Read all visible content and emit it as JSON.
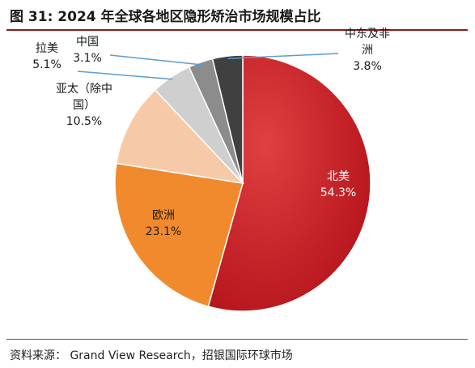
{
  "title": "图 31: 2024 年全球各地区隐形矫治市场规模占比",
  "source": "资料来源： Grand View Research，招银国际环球市场",
  "chart_data": {
    "type": "pie",
    "title": "图 31: 2024 年全球各地区隐形矫治市场规模占比",
    "start_angle_deg": 0,
    "direction": "clockwise",
    "slices": [
      {
        "label": "北美",
        "value": 54.3,
        "display": "54.3%",
        "color": "#c8141c"
      },
      {
        "label": "欧洲",
        "value": 23.1,
        "display": "23.1%",
        "color": "#f08a2c"
      },
      {
        "label": "亚太（除中国）",
        "label_lines": [
          "亚太（除中",
          "国）"
        ],
        "value": 10.5,
        "display": "10.5%",
        "color": "#f6c9a8"
      },
      {
        "label": "拉美",
        "value": 5.1,
        "display": "5.1%",
        "color": "#cfcfcf"
      },
      {
        "label": "中国",
        "value": 3.1,
        "display": "3.1%",
        "color": "#8c8c8c"
      },
      {
        "label": "中东及非洲",
        "label_lines": [
          "中东及非",
          "洲"
        ],
        "value": 3.8,
        "display": "3.8%",
        "color": "#404040"
      }
    ],
    "leader_color": "#5b9bd5"
  }
}
